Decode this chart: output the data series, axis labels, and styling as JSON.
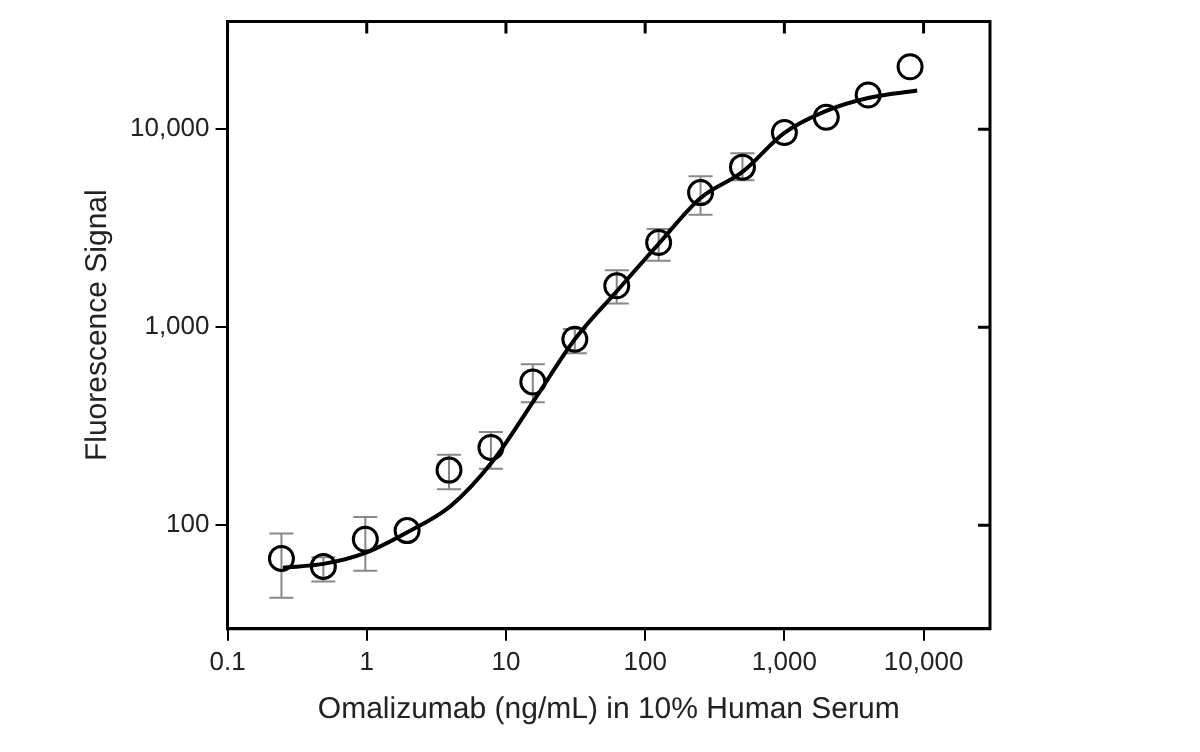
{
  "chart_data": {
    "type": "scatter",
    "xlabel": "Omalizumab (ng/mL) in 10% Human Serum",
    "ylabel": "Fluorescence Signal",
    "x": [
      0.244,
      0.488,
      0.977,
      1.95,
      3.9,
      7.8,
      15.6,
      31.25,
      62.5,
      125,
      250,
      500,
      1000,
      2000,
      4000,
      8000
    ],
    "series": [
      {
        "color": "#000000",
        "marker": "circle",
        "values": [
          68,
          62,
          85,
          94,
          190,
          247,
          530,
          870,
          1620,
          2680,
          4790,
          6440,
          9640,
          11500,
          14900,
          20700
        ],
        "errors": [
          [
            43,
            91
          ],
          [
            52,
            69
          ],
          [
            59,
            110
          ],
          null,
          [
            152,
            227
          ],
          [
            193,
            296
          ],
          [
            418,
            650
          ],
          [
            740,
            980
          ],
          [
            1320,
            1940
          ],
          [
            2170,
            3140
          ],
          [
            3700,
            5800
          ],
          [
            5530,
            7560
          ],
          null,
          null,
          null,
          null
        ]
      },
      {
        "type": "line",
        "color": "#000000",
        "marker": "none",
        "x": [
          0.25,
          0.5,
          1,
          2,
          4,
          8,
          16,
          31.25,
          62.5,
          125,
          250,
          500,
          1000,
          2000,
          4000,
          9000
        ],
        "values": [
          61,
          64,
          73,
          93,
          125,
          210,
          430,
          870,
          1520,
          2640,
          4500,
          6100,
          9600,
          12400,
          14400,
          15700
        ]
      }
    ],
    "xlim": [
      0.1,
      30000
    ],
    "ylim": [
      30,
      35000
    ],
    "xticks": [
      0.1,
      1,
      10,
      100,
      {
        "value": 1000,
        "label": "1,000"
      },
      {
        "value": 10000,
        "label": "10,000"
      }
    ],
    "yticks": [
      100,
      {
        "value": 1000,
        "label": "1,000"
      },
      {
        "value": 10000,
        "label": "10,000"
      }
    ],
    "log": "xy",
    "grid": false,
    "legend": false
  }
}
